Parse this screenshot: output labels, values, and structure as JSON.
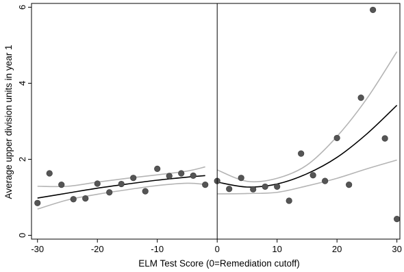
{
  "chart_data": {
    "type": "scatter",
    "xlabel": "ELM Test Score (0=Remediation cutoff)",
    "ylabel": "Average upper division units in year 1",
    "xlim": [
      -31,
      30.5
    ],
    "ylim": [
      -0.1,
      6.1
    ],
    "x_ticks": [
      -30,
      -20,
      -10,
      0,
      10,
      20,
      30
    ],
    "y_ticks": [
      0,
      2,
      4,
      6
    ],
    "cutoff_x": 0,
    "grid": false,
    "legend": "none",
    "colors": {
      "points": "#555555",
      "fit": "#000000",
      "ci": "#b4b4b4",
      "axis": "#000000"
    },
    "points": [
      {
        "x": -30,
        "y": 0.85
      },
      {
        "x": -28,
        "y": 1.63
      },
      {
        "x": -26,
        "y": 1.33
      },
      {
        "x": -24,
        "y": 0.95
      },
      {
        "x": -22,
        "y": 0.97
      },
      {
        "x": -20,
        "y": 1.36
      },
      {
        "x": -18,
        "y": 1.13
      },
      {
        "x": -16,
        "y": 1.35
      },
      {
        "x": -14,
        "y": 1.51
      },
      {
        "x": -12,
        "y": 1.16
      },
      {
        "x": -10,
        "y": 1.75
      },
      {
        "x": -8,
        "y": 1.56
      },
      {
        "x": -6,
        "y": 1.63
      },
      {
        "x": -4,
        "y": 1.57
      },
      {
        "x": -2,
        "y": 1.33
      },
      {
        "x": 0,
        "y": 1.43
      },
      {
        "x": 2,
        "y": 1.22
      },
      {
        "x": 4,
        "y": 1.51
      },
      {
        "x": 6,
        "y": 1.21
      },
      {
        "x": 8,
        "y": 1.28
      },
      {
        "x": 10,
        "y": 1.28
      },
      {
        "x": 12,
        "y": 0.91
      },
      {
        "x": 14,
        "y": 2.15
      },
      {
        "x": 16,
        "y": 1.58
      },
      {
        "x": 18,
        "y": 1.43
      },
      {
        "x": 20,
        "y": 2.56
      },
      {
        "x": 22,
        "y": 1.33
      },
      {
        "x": 24,
        "y": 3.62
      },
      {
        "x": 26,
        "y": 5.93
      },
      {
        "x": 28,
        "y": 2.55
      },
      {
        "x": 30,
        "y": 0.43
      }
    ],
    "fit_left": {
      "x": [
        -30,
        -25,
        -20,
        -15,
        -10,
        -5,
        -2
      ],
      "fit": [
        0.98,
        1.11,
        1.24,
        1.35,
        1.45,
        1.53,
        1.57
      ],
      "ci_upper": [
        1.29,
        1.29,
        1.4,
        1.5,
        1.59,
        1.69,
        1.8
      ],
      "ci_lower": [
        0.69,
        0.93,
        1.08,
        1.2,
        1.31,
        1.37,
        1.34
      ]
    },
    "fit_right": {
      "x": [
        0,
        5,
        10,
        15,
        20,
        25,
        30
      ],
      "fit": [
        1.4,
        1.27,
        1.35,
        1.62,
        2.05,
        2.67,
        3.42
      ],
      "ci_upper": [
        1.72,
        1.42,
        1.5,
        1.85,
        2.6,
        3.6,
        4.83
      ],
      "ci_lower": [
        1.09,
        1.1,
        1.13,
        1.3,
        1.5,
        1.75,
        1.98
      ]
    }
  }
}
